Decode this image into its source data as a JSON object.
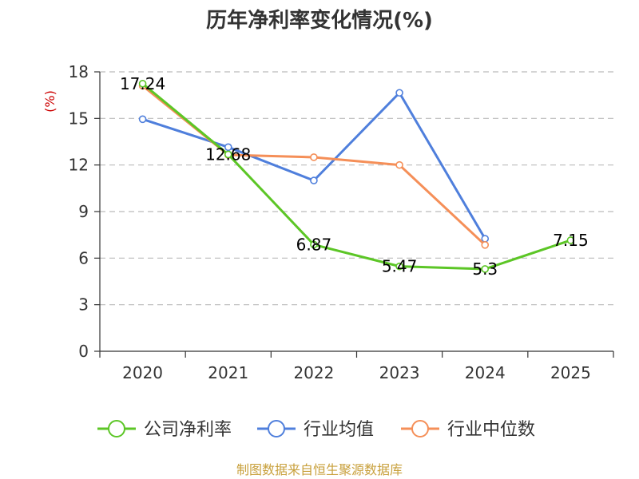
{
  "chart_data": {
    "type": "line",
    "title": "历年净利率变化情况(%)",
    "ylabel": "(%)",
    "categories": [
      "2020",
      "2021",
      "2022",
      "2023",
      "2024",
      "2025"
    ],
    "ylim": [
      0,
      18
    ],
    "yticks": [
      0,
      3,
      6,
      9,
      12,
      15,
      18
    ],
    "grid": true,
    "legend_position": "bottom",
    "series": [
      {
        "name": "公司净利率",
        "color": "#5cc626",
        "values": [
          17.24,
          12.68,
          6.87,
          5.47,
          5.3,
          7.15
        ],
        "labels": [
          "17.24",
          "12.68",
          "6.87",
          "5.47",
          "5.3",
          "7.15"
        ]
      },
      {
        "name": "行业均值",
        "color": "#4f7fdc",
        "values": [
          14.95,
          13.15,
          11.0,
          16.65,
          7.25,
          null
        ]
      },
      {
        "name": "行业中位数",
        "color": "#f58f58",
        "values": [
          17.1,
          12.65,
          12.5,
          12.0,
          6.85,
          null
        ]
      }
    ]
  },
  "source": "制图数据来自恒生聚源数据库"
}
